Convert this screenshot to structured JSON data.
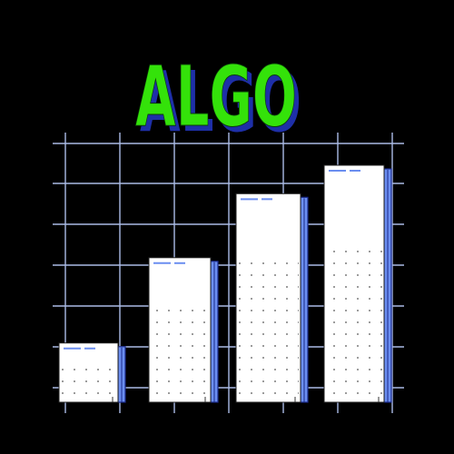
{
  "title": "ALGO",
  "colors": {
    "background": "#000000",
    "title_fill": "#34e20a",
    "title_shadow": "#1e2fa8",
    "grid": "#aabbe6",
    "bar_face": "#ffffff",
    "bar_side": "#6b8ef0",
    "bar_side_dark": "#1b2a8a",
    "dots": "#555555"
  },
  "bars": [
    {
      "name": "bar-1",
      "level": 0.25
    },
    {
      "name": "bar-2",
      "level": 0.61
    },
    {
      "name": "bar-3",
      "level": 0.88
    },
    {
      "name": "bar-4",
      "level": 1.0
    }
  ]
}
